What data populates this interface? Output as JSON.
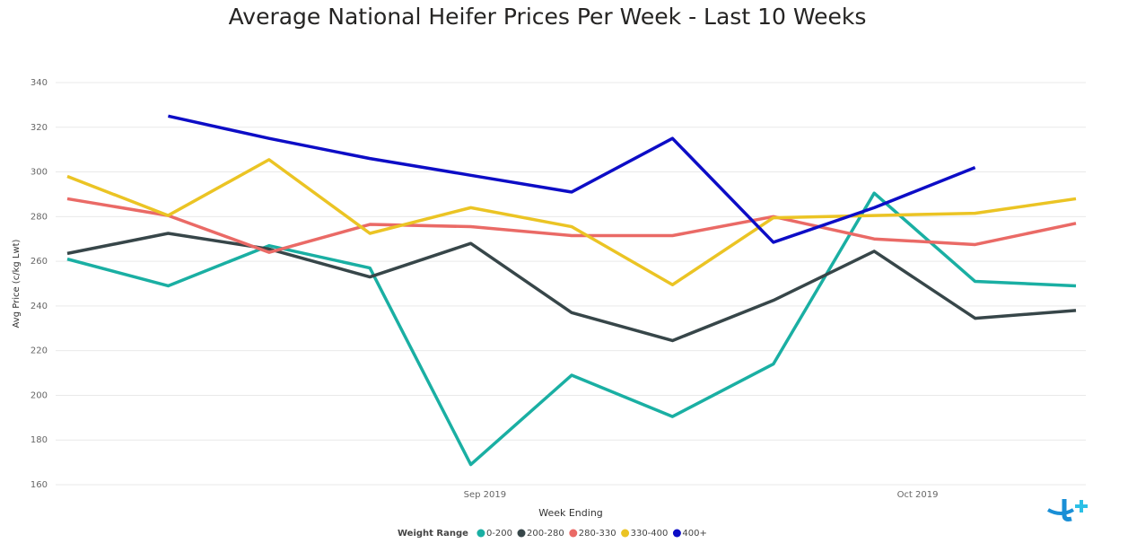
{
  "chart_data": {
    "type": "line",
    "title": "Average National Heifer Prices Per Week - Last 10 Weeks",
    "x_label": "Week Ending",
    "y_label": "Avg Price (c/kg Lwt)",
    "legend_title": "Weight Range",
    "categories": [
      null,
      null,
      null,
      null,
      null,
      null,
      null,
      null,
      null,
      null,
      null
    ],
    "xticks": [
      {
        "value": 4.14,
        "label": "Sep 2019"
      },
      {
        "value": 8.43,
        "label": "Oct 2019"
      }
    ],
    "ylim": [
      160,
      340
    ],
    "yticks": [
      160,
      180,
      200,
      220,
      240,
      260,
      280,
      300,
      320,
      340
    ],
    "grid": true,
    "series": [
      {
        "name": "0-200",
        "color": "#1aafa3",
        "values": [
          261,
          249,
          267,
          257,
          169,
          209,
          190.5,
          214,
          290.5,
          251,
          249
        ]
      },
      {
        "name": "200-280",
        "color": "#374649",
        "values": [
          263.5,
          272.5,
          265.5,
          253,
          268,
          237,
          224.5,
          242.5,
          264.5,
          234.5,
          238
        ]
      },
      {
        "name": "280-330",
        "color": "#ea6a66",
        "values": [
          288,
          280.5,
          264,
          276.5,
          275.5,
          271.5,
          271.5,
          280,
          270,
          267.5,
          277
        ]
      },
      {
        "name": "330-400",
        "color": "#ebc424",
        "values": [
          298,
          280.5,
          305.5,
          272.5,
          284,
          275.5,
          249.5,
          279.5,
          280.5,
          281.5,
          288
        ]
      },
      {
        "name": "400+",
        "color": "#0d0dc6",
        "values": [
          null,
          325,
          315,
          306,
          298.5,
          291,
          315,
          268.5,
          284,
          302,
          null
        ]
      }
    ]
  }
}
